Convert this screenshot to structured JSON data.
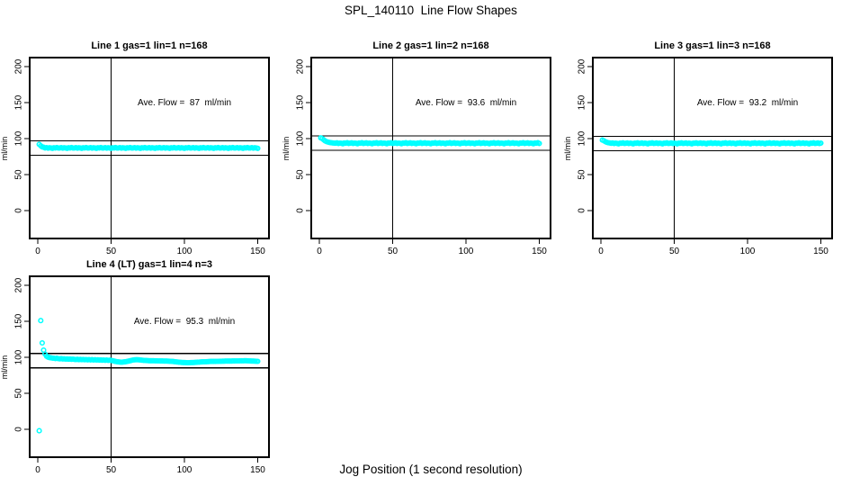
{
  "page": {
    "title": "SPL_140110  Line Flow Shapes",
    "xlabel": "Jog Position (1 second resolution)"
  },
  "colors": {
    "marker": "#00FFFF",
    "axis": "#000000",
    "background": "#ffffff"
  },
  "chart_data": [
    {
      "type": "scatter",
      "title": "Line 1 gas=1 lin=1 n=168",
      "line_label": "Line 1",
      "gas": 1,
      "lin": 1,
      "n": 168,
      "ave_flow": 87,
      "annotation": "Ave. Flow =  87  ml/min",
      "ylabel": "ml/min",
      "x_ticks": [
        0,
        50,
        100,
        150
      ],
      "y_ticks": [
        0,
        50,
        100,
        150,
        200
      ],
      "xlim": [
        -6,
        158.5
      ],
      "ylim": [
        -42.5,
        212.5
      ],
      "grid": false,
      "legend": "none",
      "ref_vline": 50,
      "ref_hlines": [
        77,
        97
      ],
      "marker_color": "#00FFFF",
      "x_start": 1,
      "x_step": 1,
      "y": [
        92,
        90,
        88.5,
        88,
        87,
        87.5,
        86.8,
        87.2,
        87,
        86.5,
        87.3,
        87,
        87.6,
        86.9,
        87,
        87.5,
        86.8,
        87.2,
        87,
        86.5,
        87.3,
        87,
        87.6,
        86.9,
        87,
        87.5,
        86.8,
        87.2,
        87,
        86.5,
        87.3,
        87,
        87.6,
        86.9,
        87,
        87.5,
        86.8,
        87.2,
        87,
        86.5,
        87.3,
        87,
        87.6,
        86.9,
        87,
        87.5,
        86.8,
        87.2,
        87,
        86.5,
        87.3,
        87,
        87.6,
        86.9,
        87,
        87.5,
        86.8,
        87.2,
        87,
        86.5,
        87.3,
        87,
        87.6,
        86.9,
        87,
        87.5,
        86.8,
        87.2,
        87,
        86.5,
        87.3,
        87,
        87.6,
        86.9,
        87,
        87.5,
        86.8,
        87.2,
        87,
        86.5,
        87.3,
        87,
        87.6,
        86.9,
        87,
        87.5,
        86.8,
        87.2,
        87,
        86.5,
        87.3,
        87,
        87.6,
        86.9,
        87,
        87.5,
        86.8,
        87.2,
        87,
        86.5,
        87.3,
        87,
        87.6,
        86.9,
        87,
        87.5,
        86.8,
        87.2,
        87,
        86.5,
        87.3,
        87,
        87.6,
        86.9,
        87,
        87.5,
        86.8,
        87.2,
        87,
        86.5,
        87.3,
        87,
        87.6,
        86.9,
        87,
        87.5,
        86.8,
        87.2,
        87,
        86.5,
        87.3,
        87,
        87.6,
        86.9,
        87,
        87.5,
        86.8,
        87.2,
        87,
        86.5,
        87.3,
        87,
        87.6,
        86.9,
        87,
        87.5,
        86.8,
        87.2,
        87,
        86.5
      ]
    },
    {
      "type": "scatter",
      "title": "Line 2 gas=1 lin=2 n=168",
      "line_label": "Line 2",
      "gas": 1,
      "lin": 2,
      "n": 168,
      "ave_flow": 93.6,
      "annotation": "Ave. Flow =  93.6  ml/min",
      "ylabel": "ml/min",
      "x_ticks": [
        0,
        50,
        100,
        150
      ],
      "y_ticks": [
        0,
        50,
        100,
        150,
        200
      ],
      "xlim": [
        -6,
        158.5
      ],
      "ylim": [
        -42.5,
        212.5
      ],
      "grid": false,
      "legend": "none",
      "ref_vline": 50,
      "ref_hlines": [
        83.6,
        103.6
      ],
      "marker_color": "#00FFFF",
      "x_start": 1,
      "x_step": 1,
      "y": [
        101,
        100,
        98.3,
        96.8,
        95.8,
        95.1,
        94.6,
        94.2,
        94,
        93.8,
        93.6,
        94.1,
        93.2,
        93.8,
        93.5,
        92.9,
        93.9,
        93.6,
        94.2,
        93.3,
        93.6,
        94.1,
        93.2,
        93.8,
        93.5,
        92.9,
        93.9,
        93.6,
        94.2,
        93.3,
        93.6,
        94.1,
        93.2,
        93.8,
        93.5,
        92.9,
        93.9,
        93.6,
        94.2,
        93.3,
        93.6,
        94.1,
        93.2,
        93.8,
        93.5,
        92.9,
        93.9,
        93.6,
        94.2,
        93.3,
        93.6,
        94.1,
        93.2,
        93.8,
        93.5,
        92.9,
        93.9,
        93.6,
        94.2,
        93.3,
        93.6,
        94.1,
        93.2,
        93.8,
        93.5,
        92.9,
        93.9,
        93.6,
        94.2,
        93.3,
        93.6,
        94.1,
        93.2,
        93.8,
        93.5,
        92.9,
        93.9,
        93.6,
        94.2,
        93.3,
        93.6,
        94.1,
        93.2,
        93.8,
        93.5,
        92.9,
        93.9,
        93.6,
        94.2,
        93.3,
        93.6,
        94.1,
        93.2,
        93.8,
        93.5,
        92.9,
        93.9,
        93.6,
        94.2,
        93.3,
        93.6,
        94.1,
        93.2,
        93.8,
        93.5,
        92.9,
        93.9,
        93.6,
        94.2,
        93.3,
        93.6,
        94.1,
        93.2,
        93.8,
        93.5,
        92.9,
        93.9,
        93.6,
        94.2,
        93.3,
        93.6,
        94.1,
        93.2,
        93.8,
        93.5,
        92.9,
        93.9,
        93.6,
        94.2,
        93.3,
        93.6,
        94.1,
        93.2,
        93.8,
        93.5,
        92.9,
        93.9,
        93.6,
        94.2,
        93.3,
        93.6,
        94.1,
        93.2,
        93.8,
        93.5,
        92.9,
        93.9,
        93.6,
        94.2,
        93.3
      ]
    },
    {
      "type": "scatter",
      "title": "Line 3 gas=1 lin=3 n=168",
      "line_label": "Line 3",
      "gas": 1,
      "lin": 3,
      "n": 168,
      "ave_flow": 93.2,
      "annotation": "Ave. Flow =  93.2  ml/min",
      "ylabel": "ml/min",
      "x_ticks": [
        0,
        50,
        100,
        150
      ],
      "y_ticks": [
        0,
        50,
        100,
        150,
        200
      ],
      "xlim": [
        -6,
        158.5
      ],
      "ylim": [
        -42.5,
        212.5
      ],
      "grid": false,
      "legend": "none",
      "ref_vline": 50,
      "ref_hlines": [
        83.2,
        103.2
      ],
      "marker_color": "#00FFFF",
      "x_start": 1,
      "x_step": 1,
      "y": [
        98,
        97,
        95.8,
        94.9,
        94.3,
        94,
        93.5,
        94,
        93.1,
        93.7,
        93.4,
        92.8,
        93.8,
        93.5,
        94.1,
        93.2,
        93.5,
        94,
        93.1,
        93.7,
        93.4,
        92.8,
        93.8,
        93.5,
        94.1,
        93.2,
        93.5,
        94,
        93.1,
        93.7,
        93.4,
        92.8,
        93.8,
        93.5,
        94.1,
        93.2,
        93.5,
        94,
        93.1,
        93.7,
        93.4,
        92.8,
        93.8,
        93.5,
        94.1,
        93.2,
        93.5,
        94,
        93.1,
        93.7,
        93.4,
        92.8,
        93.8,
        93.5,
        94.1,
        93.2,
        93.5,
        94,
        93.1,
        93.7,
        93.4,
        92.8,
        93.8,
        93.5,
        94.1,
        93.2,
        93.5,
        94,
        93.1,
        93.7,
        93.4,
        92.8,
        93.8,
        93.5,
        94.1,
        93.2,
        93.5,
        94,
        93.1,
        93.7,
        93.4,
        92.8,
        93.8,
        93.5,
        94.1,
        93.2,
        93.5,
        94,
        93.1,
        93.7,
        93.4,
        92.8,
        93.8,
        93.5,
        94.1,
        93.2,
        93.5,
        94,
        93.1,
        93.7,
        93.4,
        92.8,
        93.8,
        93.5,
        94.1,
        93.2,
        93.5,
        94,
        93.1,
        93.7,
        93.4,
        92.8,
        93.8,
        93.5,
        94.1,
        93.2,
        93.5,
        94,
        93.1,
        93.7,
        93.4,
        92.8,
        93.8,
        93.5,
        94.1,
        93.2,
        93.5,
        94,
        93.1,
        93.7,
        93.4,
        92.8,
        93.8,
        93.5,
        94.1,
        93.2,
        93.5,
        94,
        93.1,
        93.7,
        93.4,
        92.8,
        93.8,
        93.5,
        94.1,
        93.2,
        93.5,
        94,
        93.1,
        93.7
      ]
    },
    {
      "type": "scatter",
      "title": "Line 4 (LT) gas=1 lin=4 n=3",
      "line_label": "Line 4 (LT)",
      "gas": 1,
      "lin": 4,
      "n": 3,
      "ave_flow": 95.3,
      "annotation": "Ave. Flow =  95.3  ml/min",
      "ylabel": "ml/min",
      "x_ticks": [
        0,
        50,
        100,
        150
      ],
      "y_ticks": [
        0,
        50,
        100,
        150,
        200
      ],
      "xlim": [
        -6,
        158.5
      ],
      "ylim": [
        -42.5,
        212.5
      ],
      "grid": false,
      "legend": "none",
      "ref_vline": 50,
      "ref_hlines": [
        85.3,
        105.3
      ],
      "marker_color": "#00FFFF",
      "x_start": 1,
      "x_step": 1,
      "y": [
        -2,
        151,
        120,
        110,
        104.5,
        101.5,
        100.2,
        99.6,
        99.2,
        98.9,
        98.7,
        98.3,
        98.6,
        98.1,
        97.9,
        98.2,
        97.7,
        97.9,
        97.5,
        97.8,
        97.4,
        97.6,
        97.2,
        97.5,
        97.1,
        96.9,
        97.3,
        96.8,
        97.1,
        96.7,
        97.0,
        96.6,
        96.9,
        96.5,
        96.8,
        96.4,
        96.7,
        96.3,
        96.6,
        96.2,
        96.5,
        96.1,
        96.4,
        96.0,
        96.3,
        95.9,
        96.2,
        95.8,
        96.0,
        95.7,
        95.3,
        94.8,
        94.3,
        93.9,
        93.6,
        93.4,
        93.3,
        93.4,
        93.6,
        93.9,
        94.3,
        94.8,
        95.3,
        95.8,
        96.2,
        96.5,
        96.6,
        96.6,
        96.5,
        96.3,
        96.0,
        95.8,
        95.6,
        95.5,
        95.4,
        95.3,
        95.3,
        95.2,
        95.2,
        95.1,
        95.1,
        95.0,
        95.0,
        94.9,
        94.9,
        94.8,
        94.8,
        94.7,
        94.6,
        94.5,
        94.4,
        94.2,
        94.0,
        93.8,
        93.5,
        93.3,
        93.1,
        92.9,
        92.8,
        92.7,
        92.6,
        92.5,
        92.5,
        92.6,
        92.7,
        92.8,
        92.9,
        93.0,
        93.2,
        93.3,
        93.5,
        93.6,
        93.7,
        93.8,
        93.9,
        94.0,
        94.1,
        94.2,
        94.2,
        94.3,
        94.3,
        94.4,
        94.4,
        94.5,
        94.5,
        94.6,
        94.6,
        94.7,
        94.7,
        94.8,
        94.8,
        94.8,
        94.9,
        94.9,
        95.0,
        95.0,
        95.0,
        95.1,
        95.1,
        95.1,
        95.2,
        95.2,
        95.1,
        95.0,
        94.9,
        94.8,
        94.7,
        94.6,
        94.5,
        94.4
      ]
    }
  ]
}
